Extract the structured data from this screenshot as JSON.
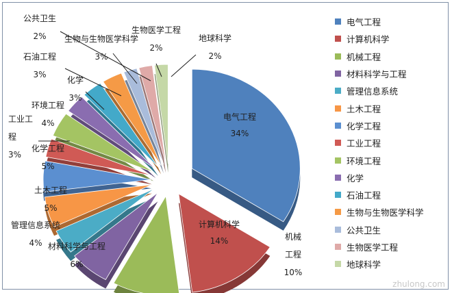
{
  "chart_data": {
    "type": "pie",
    "title": "",
    "legend_position": "right",
    "slices": [
      {
        "name": "电气工程",
        "label": [
          "电气工程"
        ],
        "value": 34,
        "value_label": "34%",
        "color": "#4f81bd"
      },
      {
        "name": "计算机科学",
        "label": [
          "计算机科学"
        ],
        "value": 14,
        "value_label": "14%",
        "color": "#c0504d"
      },
      {
        "name": "机械工程",
        "label": [
          "机械",
          "工程"
        ],
        "value": 10,
        "value_label": "10%",
        "color": "#9bbb59"
      },
      {
        "name": "材料科学与工程",
        "label": [
          "材料科学与工程"
        ],
        "value": 6,
        "value_label": "6%",
        "color": "#8064a2"
      },
      {
        "name": "管理信息系统",
        "label": [
          "管理信息系统"
        ],
        "value": 4,
        "value_label": "4%",
        "color": "#4bacc6"
      },
      {
        "name": "土木工程",
        "label": [
          "土木工程"
        ],
        "value": 5,
        "value_label": "5%",
        "color": "#f79646"
      },
      {
        "name": "化学工程",
        "label": [
          "化学工程"
        ],
        "value": 5,
        "value_label": "5%",
        "color": "#5b8fd0"
      },
      {
        "name": "工业工程",
        "label": [
          "工业工",
          "程"
        ],
        "value": 3,
        "value_label": "3%",
        "color": "#d05a55"
      },
      {
        "name": "环境工程",
        "label": [
          "环境工程"
        ],
        "value": 4,
        "value_label": "4%",
        "color": "#a4c463"
      },
      {
        "name": "化学",
        "label": [
          "化学"
        ],
        "value": 3,
        "value_label": "3%",
        "color": "#8a6db0"
      },
      {
        "name": "石油工程",
        "label": [
          "石油工程"
        ],
        "value": 3,
        "value_label": "3%",
        "color": "#43a9c9"
      },
      {
        "name": "生物与生物医学科学",
        "label": [
          "生物与生物医学科学"
        ],
        "value": 3,
        "value_label": "3%",
        "color": "#f59a46"
      },
      {
        "name": "公共卫生",
        "label": [
          "公共卫生"
        ],
        "value": 2,
        "value_label": "2%",
        "color": "#a9bcdb"
      },
      {
        "name": "生物医学工程",
        "label": [
          "生物医学工程"
        ],
        "value": 2,
        "value_label": "2%",
        "color": "#dfaaa8"
      },
      {
        "name": "地球科学",
        "label": [
          "地球科学"
        ],
        "value": 2,
        "value_label": "2%",
        "color": "#c5d8a7"
      }
    ]
  },
  "watermark": "zhulong.com"
}
